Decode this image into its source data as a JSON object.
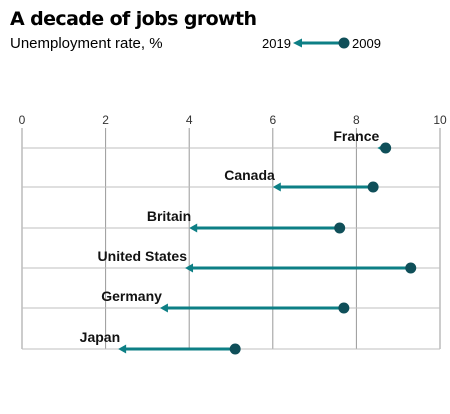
{
  "chart_data": {
    "type": "dumbbell",
    "title": "A decade of jobs growth",
    "subtitle": "Unemployment rate, %",
    "legend": {
      "end_label": "2019",
      "start_label": "2009",
      "placement": "top-right"
    },
    "x_ticks": [
      "0",
      "2",
      "4",
      "6",
      "8",
      "10"
    ],
    "xlim": [
      0,
      10
    ],
    "grid": true,
    "series": [
      {
        "name": "2009",
        "values": [
          8.7,
          8.4,
          7.6,
          9.3,
          7.7,
          5.1
        ]
      },
      {
        "name": "2019",
        "values": [
          8.5,
          6.0,
          4.0,
          3.9,
          3.3,
          2.3
        ]
      }
    ],
    "categories": [
      "France",
      "Canada",
      "Britain",
      "United States",
      "Germany",
      "Japan"
    ],
    "colors": {
      "line": "#0d7f85",
      "dot": "#0f4f59",
      "grid": "#bfbfbf",
      "axis": "#999999"
    }
  }
}
